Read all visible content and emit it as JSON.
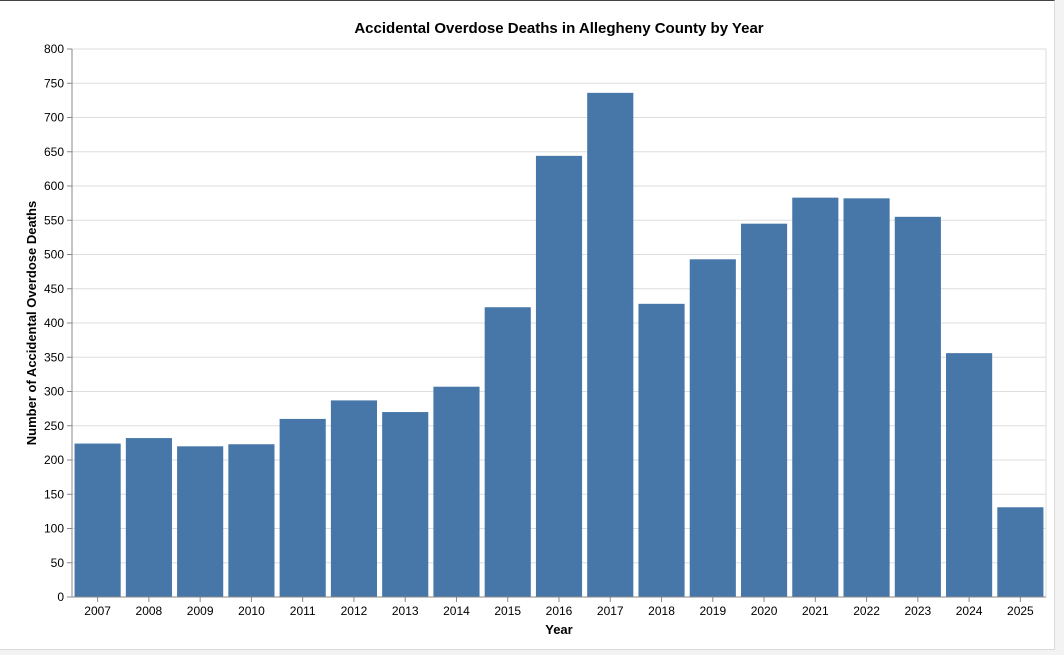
{
  "chart_data": {
    "type": "bar",
    "title": "Accidental Overdose Deaths in Allegheny County by Year",
    "xlabel": "Year",
    "ylabel": "Number of Accidental Overdose Deaths",
    "categories": [
      "2007",
      "2008",
      "2009",
      "2010",
      "2011",
      "2012",
      "2013",
      "2014",
      "2015",
      "2016",
      "2017",
      "2018",
      "2019",
      "2020",
      "2021",
      "2022",
      "2023",
      "2024",
      "2025"
    ],
    "values": [
      224,
      232,
      220,
      223,
      260,
      287,
      270,
      307,
      423,
      644,
      736,
      428,
      493,
      545,
      583,
      582,
      555,
      356,
      131
    ],
    "ylim": [
      0,
      800
    ],
    "yticks": [
      "0",
      "50",
      "100",
      "150",
      "200",
      "250",
      "300",
      "350",
      "400",
      "450",
      "500",
      "550",
      "600",
      "650",
      "700",
      "750",
      "800"
    ],
    "grid": true,
    "legend": "none",
    "bar_color": "#4677a8"
  }
}
